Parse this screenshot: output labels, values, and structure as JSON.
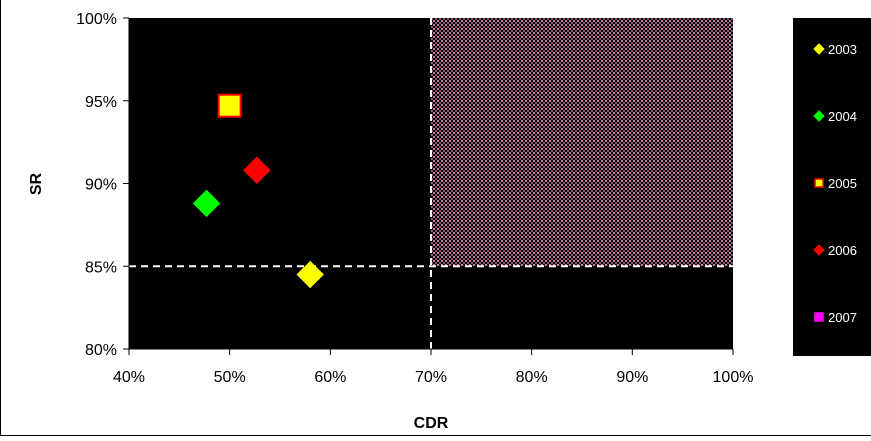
{
  "chart_data": {
    "type": "scatter",
    "title": "",
    "xlabel": "CDR",
    "ylabel": "SR",
    "xlim": [
      0.4,
      1.0
    ],
    "ylim": [
      0.8,
      1.0
    ],
    "x_ticks": [
      0.4,
      0.5,
      0.6,
      0.7,
      0.8,
      0.9,
      1.0
    ],
    "y_ticks": [
      0.8,
      0.85,
      0.9,
      0.95,
      1.0
    ],
    "x_tick_labels": [
      "40%",
      "50%",
      "60%",
      "70%",
      "80%",
      "90%",
      "100%"
    ],
    "y_tick_labels": [
      "80%",
      "85%",
      "90%",
      "95%",
      "100%"
    ],
    "thresholds": {
      "x": 0.7,
      "y": 0.85
    },
    "target_region": {
      "x": [
        0.7,
        1.0
      ],
      "y": [
        0.85,
        1.0
      ],
      "color": "#c77fa8"
    },
    "grid": false,
    "plot_background": "#000000",
    "legend_position": "right",
    "series": [
      {
        "name": "2003",
        "marker": "diamond",
        "color": "#ffff00",
        "edge": "#ffff00",
        "points": [
          [
            0.58,
            0.845
          ]
        ]
      },
      {
        "name": "2004",
        "marker": "diamond",
        "color": "#00ff00",
        "edge": "#00ff00",
        "points": [
          [
            0.477,
            0.888
          ]
        ]
      },
      {
        "name": "2005",
        "marker": "square",
        "color": "#ffff00",
        "edge": "#ff0000",
        "points": [
          [
            0.5,
            0.947
          ]
        ]
      },
      {
        "name": "2006",
        "marker": "diamond",
        "color": "#ff0000",
        "edge": "#ff0000",
        "points": [
          [
            0.527,
            0.908
          ]
        ]
      },
      {
        "name": "2007",
        "marker": "square",
        "color": "#ff00ff",
        "edge": "#ff00ff",
        "points": []
      }
    ]
  }
}
